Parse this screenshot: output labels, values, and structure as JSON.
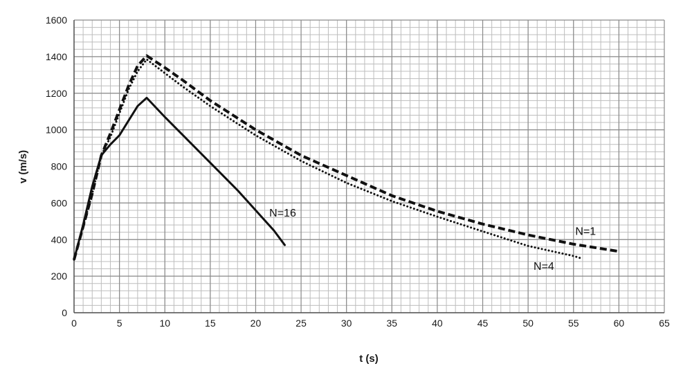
{
  "chart_data": {
    "type": "line",
    "title": "",
    "xlabel": "t (s)",
    "ylabel": "v (m/s)",
    "xlim": [
      0,
      65
    ],
    "ylim": [
      0,
      1600
    ],
    "x_major_ticks": [
      0,
      5,
      10,
      15,
      20,
      25,
      30,
      35,
      40,
      45,
      50,
      55,
      60,
      65
    ],
    "x_tick_labels": [
      "0",
      "5",
      "10",
      "15",
      "20",
      "25",
      "30",
      "35",
      "40",
      "45",
      "50",
      "55",
      "60",
      "65"
    ],
    "y_major_ticks": [
      0,
      200,
      400,
      600,
      800,
      1000,
      1200,
      1400,
      1600
    ],
    "y_tick_labels": [
      "0",
      "200",
      "400",
      "600",
      "800",
      "1000",
      "1200",
      "1400",
      "1600"
    ],
    "grid": true,
    "minor_grid_x_step": 1,
    "minor_grid_y_step": 40,
    "legend": "none",
    "series": [
      {
        "name": "N=1",
        "line_style": "dashed",
        "x": [
          0,
          1,
          2,
          3,
          4,
          5,
          6,
          7,
          8,
          10,
          12,
          15,
          20,
          25,
          30,
          35,
          40,
          45,
          50,
          55,
          60
        ],
        "y": [
          290,
          470,
          650,
          860,
          980,
          1110,
          1240,
          1350,
          1405,
          1340,
          1270,
          1160,
          1000,
          860,
          750,
          640,
          555,
          485,
          425,
          375,
          335
        ]
      },
      {
        "name": "N=4",
        "line_style": "dotted",
        "x": [
          0,
          1,
          2,
          3,
          4,
          5,
          6,
          7,
          8,
          10,
          12,
          15,
          20,
          25,
          30,
          35,
          40,
          45,
          50,
          55,
          56
        ],
        "y": [
          290,
          470,
          650,
          860,
          960,
          1090,
          1220,
          1320,
          1385,
          1310,
          1235,
          1130,
          970,
          830,
          710,
          610,
          525,
          445,
          365,
          310,
          295
        ]
      },
      {
        "name": "N=16",
        "line_style": "solid",
        "x": [
          0,
          1,
          2,
          3,
          4,
          5,
          6,
          7,
          8,
          10,
          12,
          15,
          18,
          20,
          22,
          23.2
        ],
        "y": [
          290,
          480,
          690,
          860,
          920,
          970,
          1050,
          1130,
          1175,
          1070,
          970,
          820,
          670,
          560,
          450,
          370
        ]
      }
    ],
    "annotations": [
      {
        "text": "N=16",
        "x": 21.5,
        "y": 525
      },
      {
        "text": "N=1",
        "x": 55.2,
        "y": 425
      },
      {
        "text": "N=4",
        "x": 50.6,
        "y": 235
      }
    ]
  }
}
